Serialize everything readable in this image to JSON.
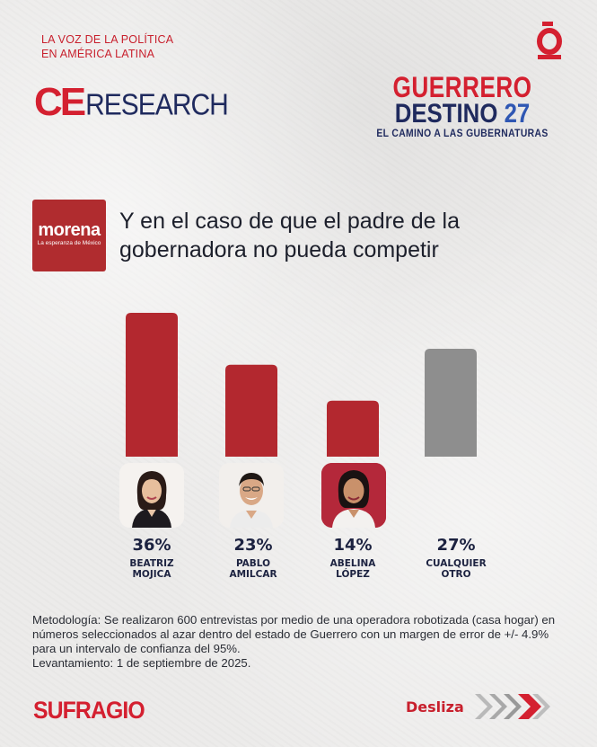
{
  "header": {
    "tagline_line1": "LA VOZ DE LA POLÍTICA",
    "tagline_line2": "EN AMÉRICA LATINA",
    "ce_logo_ce": "CE",
    "ce_logo_research": "RESEARCH",
    "campaign_line1": "GUERRERO",
    "campaign_line2_word": "DESTINO",
    "campaign_line2_number": "27",
    "campaign_line3": "EL CAMINO A LAS GUBERNATURAS"
  },
  "party": {
    "name": "morena",
    "slogan": "La esperanza de México",
    "color": "#b02c2f"
  },
  "colors": {
    "accent_red": "#d42030",
    "bar_red": "#b3282f",
    "bar_gray": "#8e8e8e",
    "navy": "#1f2a5e"
  },
  "chart_data": {
    "type": "bar",
    "title": "Y en el caso de que el padre de la gobernadora no pueda competir",
    "categories": [
      "BEATRIZ MOJICA",
      "PABLO AMILCAR",
      "ABELINA LÓPEZ",
      "CUALQUIER OTRO"
    ],
    "values": [
      36,
      23,
      14,
      27
    ],
    "value_labels": [
      "36%",
      "23%",
      "14%",
      "27%"
    ],
    "name_lines": [
      [
        "BEATRIZ",
        "MOJICA"
      ],
      [
        "PABLO",
        "AMILCAR"
      ],
      [
        "ABELINA",
        "LÓPEZ"
      ],
      [
        "CUALQUIER",
        "OTRO"
      ]
    ],
    "bar_colors": [
      "#b3282f",
      "#b3282f",
      "#b3282f",
      "#8e8e8e"
    ],
    "ylim": [
      0,
      36
    ],
    "grid": false,
    "xlabel": "",
    "ylabel": ""
  },
  "methodology": {
    "line": "Metodología: Se realizaron 600 entrevistas por medio de una operadora robotizada (casa hogar) en números seleccionados al azar dentro del estado de Guerrero con un margen de error de +/- 4.9% para un intervalo de confianza del 95%.",
    "date": "Levantamiento: 1 de septiembre de 2025."
  },
  "footer": {
    "brand": "SUFRAGIO",
    "cta": "Desliza"
  }
}
